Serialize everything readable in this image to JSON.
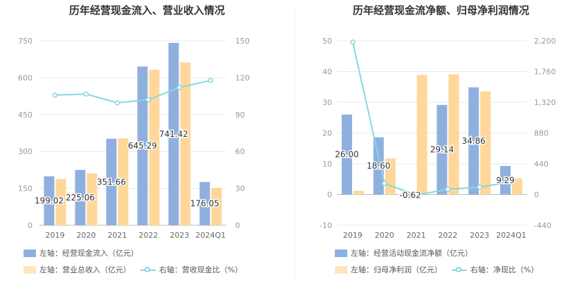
{
  "colors": {
    "blue": "#8fb0de",
    "orange": "#ffd79a",
    "line": "#88d7dd",
    "grid": "#e8e8e8",
    "axis": "#999999"
  },
  "chart_data": [
    {
      "type": "bar",
      "title": "历年经营现金流入、营业收入情况",
      "categories": [
        "2019",
        "2020",
        "2021",
        "2022",
        "2023",
        "2024Q1"
      ],
      "y_left": {
        "ticks": [
          "0",
          "150",
          "300",
          "450",
          "600",
          "750"
        ],
        "ylim": [
          0,
          750
        ]
      },
      "y_right": {
        "ticks": [
          "0",
          "30",
          "60",
          "90",
          "120",
          "150"
        ],
        "ylim": [
          0,
          150
        ]
      },
      "series": [
        {
          "name": "左轴：经营现金流入（亿元）",
          "axis": "left",
          "kind": "bar",
          "color": "#8fb0de",
          "values": [
            199.02,
            225.06,
            351.66,
            645.29,
            741.42,
            176.05
          ],
          "labels": [
            "199.02",
            "225.06",
            "351.66",
            "645.29",
            "741.42",
            "176.05"
          ]
        },
        {
          "name": "左轴：营业总收入（亿元）",
          "axis": "left",
          "kind": "bar",
          "color": "#ffd79a",
          "values": [
            188,
            211,
            353,
            632,
            662,
            152
          ]
        },
        {
          "name": "右轴：营收现金比（%）",
          "axis": "right",
          "kind": "line",
          "color": "#88d7dd",
          "values": [
            105.8,
            106.7,
            99.6,
            102.1,
            112.0,
            117.8
          ]
        }
      ]
    },
    {
      "type": "bar",
      "title": "历年经营现金流净额、归母净利润情况",
      "categories": [
        "2019",
        "2020",
        "2021",
        "2022",
        "2023",
        "2024Q1"
      ],
      "y_left": {
        "ticks": [
          "-10",
          "0",
          "10",
          "20",
          "30",
          "40",
          "50"
        ],
        "ylim": [
          -10,
          50
        ]
      },
      "y_right": {
        "ticks": [
          "-440",
          "0",
          "440",
          "880",
          "1,320",
          "1,760",
          "2,200"
        ],
        "ylim": [
          -440,
          2200
        ]
      },
      "series": [
        {
          "name": "左轴：经营活动现金流净额（亿元）",
          "axis": "left",
          "kind": "bar",
          "color": "#8fb0de",
          "values": [
            26.0,
            18.6,
            -0.62,
            29.14,
            34.86,
            9.29
          ],
          "labels": [
            "26.00",
            "18.60",
            "-0.62",
            "29.14",
            "34.86",
            "9.29"
          ]
        },
        {
          "name": "左轴：归母净利润（亿元）",
          "axis": "left",
          "kind": "bar",
          "color": "#ffd79a",
          "values": [
            1.2,
            11.7,
            38.9,
            39.1,
            33.5,
            5.2
          ]
        },
        {
          "name": "右轴：净现比（%）",
          "axis": "right",
          "kind": "line",
          "color": "#88d7dd",
          "values": [
            2180,
            160,
            -7,
            75,
            105,
            180
          ]
        }
      ]
    }
  ]
}
